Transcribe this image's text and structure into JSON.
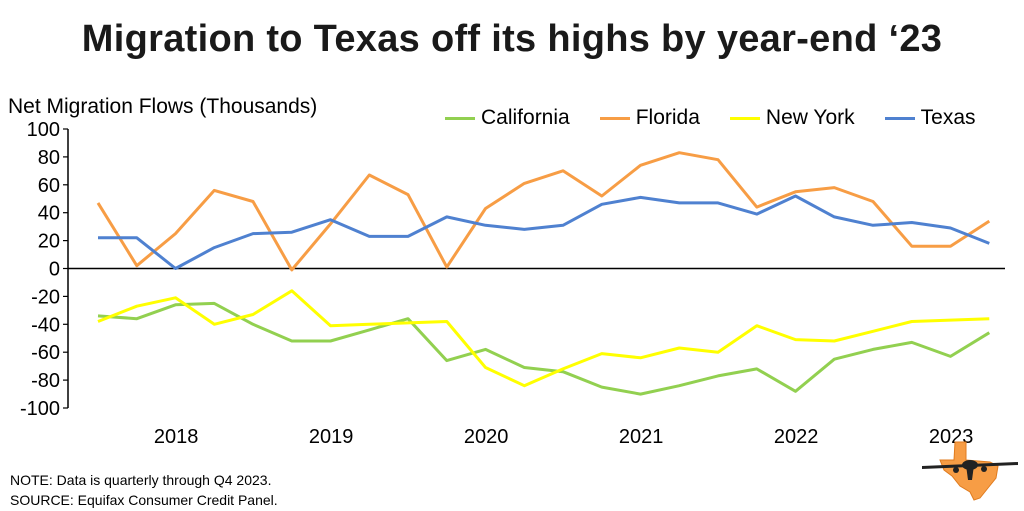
{
  "title": "Migration to Texas off its highs by year-end ‘23",
  "ylabel": "Net Migration Flows (Thousands)",
  "note": "NOTE: Data is quarterly through Q4 2023.",
  "source": "SOURCE: Equifax Consumer Credit Panel.",
  "logo_icon": "texas-airplane-logo",
  "chart_data": {
    "type": "line",
    "ylim": [
      -100,
      100
    ],
    "yticks": [
      100,
      80,
      60,
      40,
      20,
      0,
      -20,
      -40,
      -60,
      -80,
      -100
    ],
    "year_labels": [
      "2018",
      "2019",
      "2020",
      "2021",
      "2022",
      "2023"
    ],
    "grid": false,
    "legend_position": "top-right",
    "series": [
      {
        "name": "California",
        "color": "#92d050",
        "values": [
          -34,
          -36,
          -26,
          -25,
          -40,
          -52,
          -52,
          -44,
          -36,
          -66,
          -58,
          -71,
          -74,
          -85,
          -90,
          -84,
          -77,
          -72,
          -88,
          -65,
          -58,
          -53,
          -63,
          -46
        ]
      },
      {
        "name": "Florida",
        "color": "#f79d45",
        "values": [
          47,
          2,
          25,
          56,
          48,
          -1,
          32,
          67,
          53,
          1,
          43,
          61,
          70,
          52,
          74,
          83,
          78,
          44,
          55,
          58,
          48,
          16,
          16,
          34
        ]
      },
      {
        "name": "New York",
        "color": "#ffff00",
        "values": [
          -38,
          -27,
          -21,
          -40,
          -33,
          -16,
          -41,
          -40,
          -39,
          -38,
          -71,
          -84,
          -72,
          -61,
          -64,
          -57,
          -60,
          -41,
          -51,
          -52,
          -45,
          -38,
          -37,
          -36
        ]
      },
      {
        "name": "Texas",
        "color": "#4f81d0",
        "values": [
          22,
          22,
          0,
          15,
          25,
          26,
          35,
          23,
          23,
          37,
          31,
          28,
          31,
          46,
          51,
          47,
          47,
          39,
          52,
          37,
          31,
          33,
          29,
          18
        ]
      }
    ]
  }
}
